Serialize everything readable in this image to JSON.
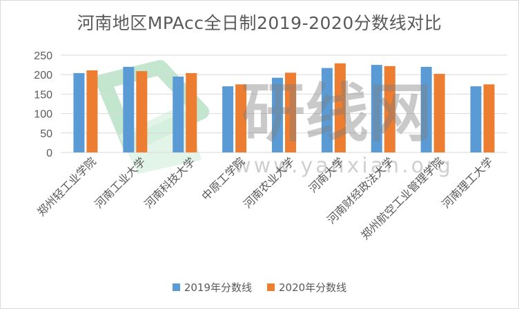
{
  "chart_data": {
    "type": "bar",
    "title": "河南地区MPAcc全日制2019-2020分数线对比",
    "categories": [
      "郑州轻工业学院",
      "河南工业大学",
      "河南科技大学",
      "中原工学院",
      "河南农业大学",
      "河南大学",
      "河南财经政法大学",
      "郑州航空工业管理学院",
      "河南理工大学"
    ],
    "series": [
      {
        "name": "2019年分数线",
        "color": "#5b9bd5",
        "values": [
          204,
          220,
          195,
          170,
          192,
          217,
          225,
          220,
          170
        ]
      },
      {
        "name": "2020年分数线",
        "color": "#ed7d31",
        "values": [
          211,
          209,
          204,
          175,
          205,
          229,
          222,
          202,
          175
        ]
      }
    ],
    "y_ticks": [
      "0",
      "50",
      "100",
      "150",
      "200",
      "250"
    ],
    "ylim": [
      0,
      250
    ],
    "grid": true,
    "legend_position": "bottom"
  },
  "watermark": {
    "text": "研线网",
    "url": "www.yanxian.org"
  }
}
